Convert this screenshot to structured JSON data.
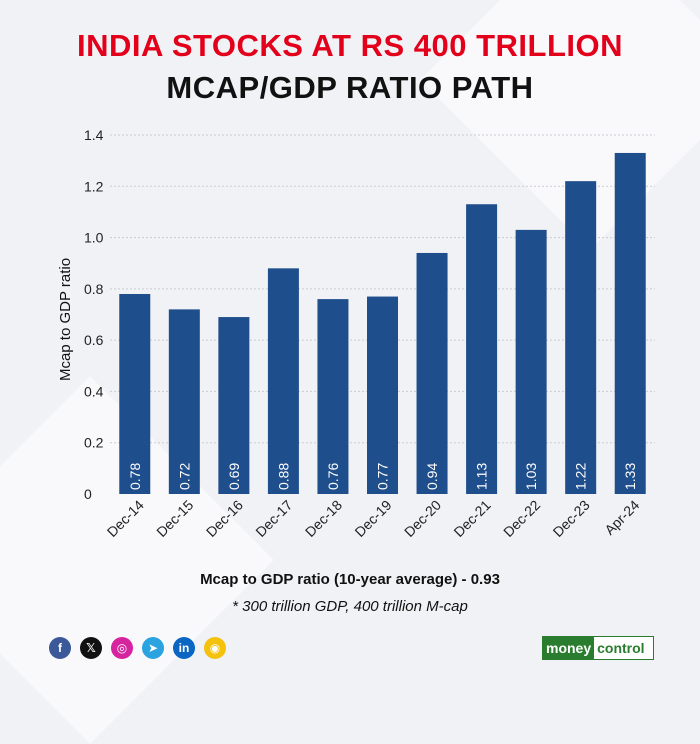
{
  "title_line1": "INDIA STOCKS AT RS 400 TRILLION",
  "title_line2": "MCAP/GDP RATIO PATH",
  "chart_data": {
    "type": "bar",
    "categories": [
      "Dec-14",
      "Dec-15",
      "Dec-16",
      "Dec-17",
      "Dec-18",
      "Dec-19",
      "Dec-20",
      "Dec-21",
      "Dec-22",
      "Dec-23",
      "Apr-24"
    ],
    "values": [
      0.78,
      0.72,
      0.69,
      0.88,
      0.76,
      0.77,
      0.94,
      1.13,
      1.03,
      1.22,
      1.33
    ],
    "value_labels": [
      "0.78",
      "0.72",
      "0.69",
      "0.88",
      "0.76",
      "0.77",
      "0.94",
      "1.13",
      "1.03",
      "1.22",
      "1.33"
    ],
    "ylabel": "Mcap to GDP ratio",
    "ylim": [
      0,
      1.4
    ],
    "yticks": [
      "0",
      "0.2",
      "0.4",
      "0.6",
      "0.8",
      "1.0",
      "1.2",
      "1.4"
    ],
    "ytick_values": [
      0,
      0.2,
      0.4,
      0.6,
      0.8,
      1.0,
      1.2,
      1.4
    ],
    "bar_color": "#1f4e8c",
    "grid": true
  },
  "note_bold": "Mcap to GDP ratio (10-year average) - 0.93",
  "note_italic": "* 300 trillion GDP, 400 trillion M-cap",
  "socials": [
    {
      "name": "facebook-icon",
      "glyph": "f",
      "color": "#3b5998"
    },
    {
      "name": "x-icon",
      "glyph": "𝕏",
      "color": "#111111"
    },
    {
      "name": "instagram-icon",
      "glyph": "◎",
      "color": "#d6249f"
    },
    {
      "name": "telegram-icon",
      "glyph": "➤",
      "color": "#2aa3e0"
    },
    {
      "name": "linkedin-icon",
      "glyph": "in",
      "color": "#0a66c2"
    },
    {
      "name": "koo-icon",
      "glyph": "◉",
      "color": "#f4c20d"
    }
  ],
  "logo": {
    "part1": "money",
    "part2": "control"
  }
}
